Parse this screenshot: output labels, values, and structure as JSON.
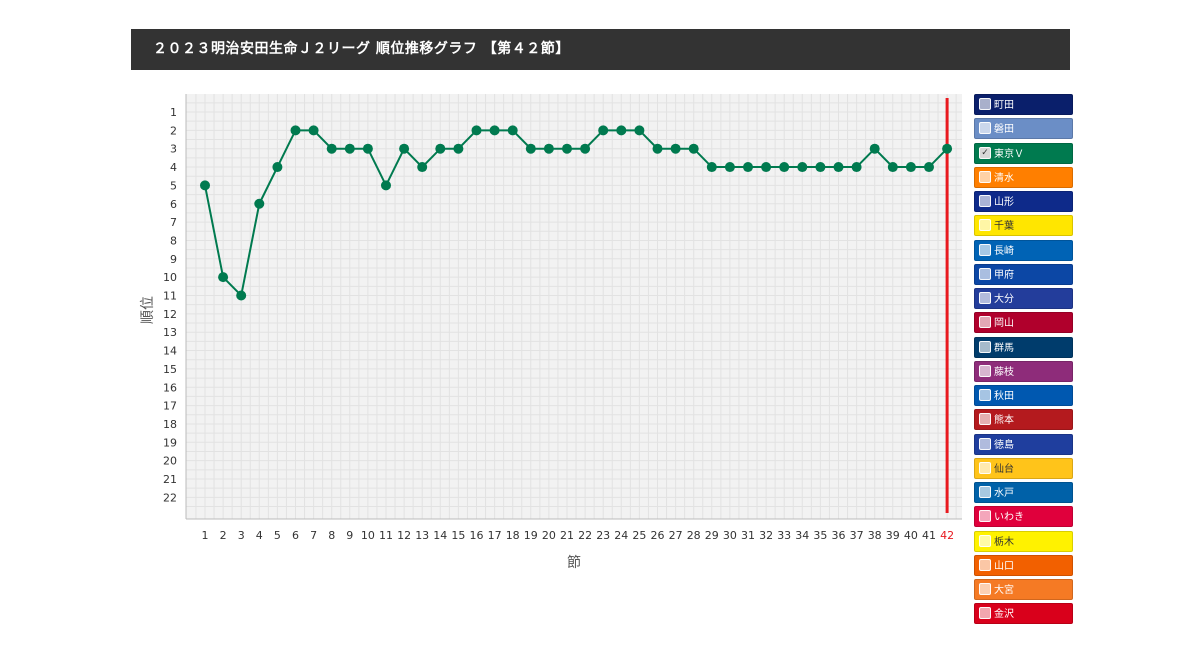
{
  "header": {
    "title": "２０２３明治安田生命Ｊ２リーグ 順位推移グラフ 【第４２節】"
  },
  "chart_data": {
    "type": "line",
    "xlabel": "節",
    "ylabel": "順位",
    "x": [
      1,
      2,
      3,
      4,
      5,
      6,
      7,
      8,
      9,
      10,
      11,
      12,
      13,
      14,
      15,
      16,
      17,
      18,
      19,
      20,
      21,
      22,
      23,
      24,
      25,
      26,
      27,
      28,
      29,
      30,
      31,
      32,
      33,
      34,
      35,
      36,
      37,
      38,
      39,
      40,
      41,
      42
    ],
    "xlim": [
      1,
      42
    ],
    "ylim": [
      22,
      1
    ],
    "y_inverted": true,
    "grid": true,
    "current_round": 42,
    "current_round_color": "#e8191f",
    "series": [
      {
        "name": "東京Ｖ",
        "color": "#007a4f",
        "values": [
          5,
          10,
          11,
          6,
          4,
          2,
          2,
          3,
          3,
          3,
          5,
          3,
          4,
          3,
          3,
          2,
          2,
          2,
          3,
          3,
          3,
          3,
          2,
          2,
          2,
          3,
          3,
          3,
          4,
          4,
          4,
          4,
          4,
          4,
          4,
          4,
          4,
          3,
          4,
          4,
          4,
          3
        ]
      }
    ]
  },
  "legend": {
    "items": [
      {
        "label": "町田",
        "color": "#0a1f6b",
        "checked": false,
        "dark_text": false
      },
      {
        "label": "磐田",
        "color": "#6b8ec6",
        "checked": false,
        "dark_text": false
      },
      {
        "label": "東京Ｖ",
        "color": "#007a4f",
        "checked": true,
        "dark_text": false
      },
      {
        "label": "清水",
        "color": "#ff7f00",
        "checked": false,
        "dark_text": false
      },
      {
        "label": "山形",
        "color": "#0e2a8a",
        "checked": false,
        "dark_text": false
      },
      {
        "label": "千葉",
        "color": "#ffe600",
        "checked": false,
        "dark_text": true
      },
      {
        "label": "長崎",
        "color": "#0063b5",
        "checked": false,
        "dark_text": false
      },
      {
        "label": "甲府",
        "color": "#0c47a5",
        "checked": false,
        "dark_text": false
      },
      {
        "label": "大分",
        "color": "#233d9b",
        "checked": false,
        "dark_text": false
      },
      {
        "label": "岡山",
        "color": "#b0002c",
        "checked": false,
        "dark_text": false
      },
      {
        "label": "群馬",
        "color": "#003c6c",
        "checked": false,
        "dark_text": false
      },
      {
        "label": "藤枝",
        "color": "#8e2c7a",
        "checked": false,
        "dark_text": false
      },
      {
        "label": "秋田",
        "color": "#0058b0",
        "checked": false,
        "dark_text": false
      },
      {
        "label": "熊本",
        "color": "#b41a1e",
        "checked": false,
        "dark_text": false
      },
      {
        "label": "徳島",
        "color": "#1f3e9e",
        "checked": false,
        "dark_text": false
      },
      {
        "label": "仙台",
        "color": "#ffc41a",
        "checked": false,
        "dark_text": true
      },
      {
        "label": "水戸",
        "color": "#0061a8",
        "checked": false,
        "dark_text": false
      },
      {
        "label": "いわき",
        "color": "#e0003c",
        "checked": false,
        "dark_text": false
      },
      {
        "label": "栃木",
        "color": "#fff200",
        "checked": false,
        "dark_text": true
      },
      {
        "label": "山口",
        "color": "#f26000",
        "checked": false,
        "dark_text": false
      },
      {
        "label": "大宮",
        "color": "#f57a24",
        "checked": false,
        "dark_text": false
      },
      {
        "label": "金沢",
        "color": "#d9001b",
        "checked": false,
        "dark_text": false
      }
    ]
  }
}
